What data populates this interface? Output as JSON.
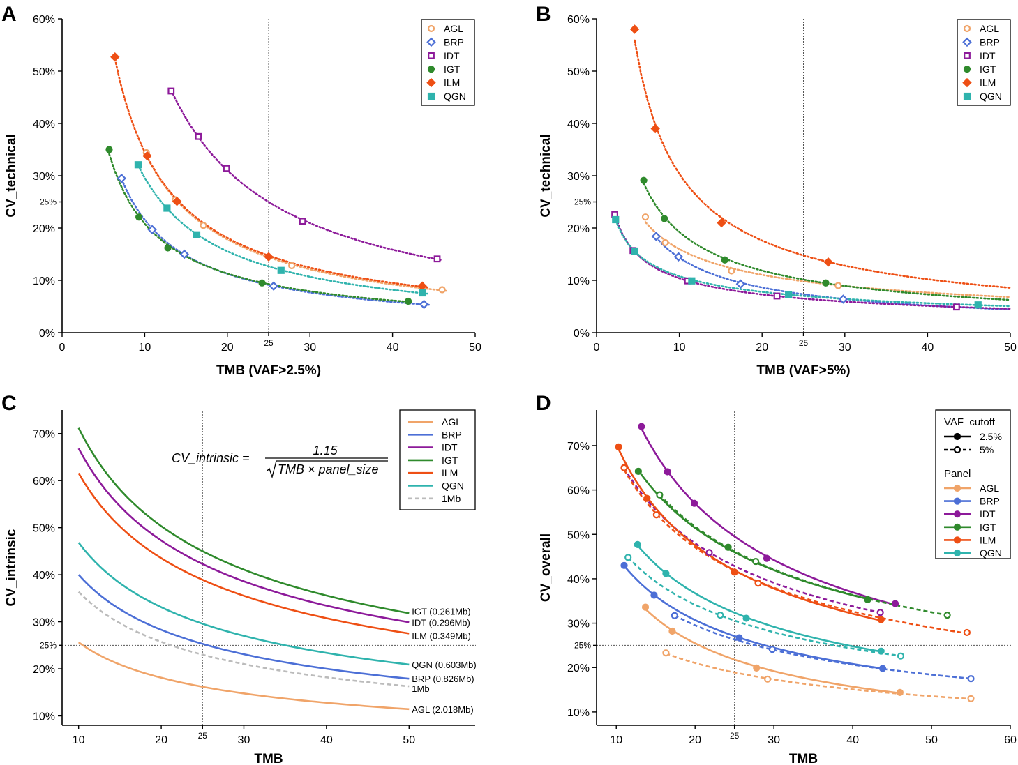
{
  "colors": {
    "AGL": "#f0a469",
    "BRP": "#4c6fd6",
    "IDT": "#8d1a9a",
    "IGT": "#2f8a2c",
    "ILM": "#ee4f14",
    "QGN": "#2fb3ad",
    "1Mb": "#bbbbbb"
  },
  "panel_letters": [
    "A",
    "B",
    "C",
    "D"
  ],
  "chart_data": [
    {
      "id": "A",
      "type": "scatter",
      "xlabel": "TMB (VAF>2.5%)",
      "ylabel": "CV_technical",
      "xlim": [
        0,
        50
      ],
      "ylim": [
        0,
        60
      ],
      "xticks": [
        0,
        10,
        20,
        30,
        40,
        50
      ],
      "xtick_labels": [
        "0",
        "10",
        "20",
        "30",
        "40",
        "50"
      ],
      "yticks": [
        0,
        10,
        20,
        30,
        40,
        50,
        60
      ],
      "ytick_labels": [
        "0%",
        "10%",
        "20%",
        "30%",
        "40%",
        "50%",
        "60%"
      ],
      "ref_x": 25,
      "ref_x_label": "25",
      "ref_y": 25,
      "ref_y_label": "25%",
      "legend_position": "top-right",
      "trend_lines": "dotted",
      "series": [
        {
          "name": "AGL",
          "marker": "open-circle",
          "x": [
            10.2,
            13.7,
            17.1,
            27.8,
            46
          ],
          "y": [
            34.4,
            25.4,
            20.5,
            12.8,
            8.2
          ]
        },
        {
          "name": "BRP",
          "marker": "open-diamond",
          "x": [
            7.2,
            10.9,
            14.8,
            25.6,
            43.8
          ],
          "y": [
            29.5,
            19.7,
            15,
            8.9,
            5.4
          ]
        },
        {
          "name": "IDT",
          "marker": "open-square",
          "x": [
            13.2,
            16.5,
            19.9,
            29.1,
            45.4
          ],
          "y": [
            46.2,
            37.5,
            31.4,
            21.3,
            14.1
          ]
        },
        {
          "name": "IGT",
          "marker": "filled-circle",
          "x": [
            5.7,
            9.3,
            12.8,
            24.2,
            41.9
          ],
          "y": [
            35,
            22.1,
            16.2,
            9.5,
            6
          ]
        },
        {
          "name": "ILM",
          "marker": "filled-diamond",
          "x": [
            6.4,
            10.3,
            13.9,
            25,
            43.6
          ],
          "y": [
            52.7,
            33.8,
            25.1,
            14.5,
            8.9
          ]
        },
        {
          "name": "QGN",
          "marker": "filled-square",
          "x": [
            9.2,
            12.7,
            16.3,
            26.5,
            43.6
          ],
          "y": [
            32.1,
            23.8,
            18.7,
            11.9,
            7.6
          ]
        }
      ]
    },
    {
      "id": "B",
      "type": "scatter",
      "xlabel": "TMB (VAF>5%)",
      "ylabel": "CV_technical",
      "xlim": [
        0,
        50
      ],
      "ylim": [
        0,
        60
      ],
      "xticks": [
        0,
        10,
        20,
        30,
        40,
        50
      ],
      "xtick_labels": [
        "0",
        "10",
        "20",
        "30",
        "40",
        "50"
      ],
      "yticks": [
        0,
        10,
        20,
        30,
        40,
        50,
        60
      ],
      "ytick_labels": [
        "0%",
        "10%",
        "20%",
        "30%",
        "40%",
        "50%",
        "60%"
      ],
      "ref_x": 25,
      "ref_x_label": "25",
      "ref_y": 25,
      "ref_y_label": "25%",
      "legend_position": "top-right",
      "trend_lines": "dotted",
      "series": [
        {
          "name": "AGL",
          "marker": "open-circle",
          "x": [
            5.9,
            8.3,
            16.3,
            29.2,
            50
          ],
          "y": [
            22.1,
            17.2,
            11.8,
            9,
            7
          ]
        },
        {
          "name": "BRP",
          "marker": "open-diamond",
          "x": [
            7.2,
            9.9,
            17.4,
            29.8,
            50
          ],
          "y": [
            18.4,
            14.5,
            9.3,
            6.4,
            4.5
          ]
        },
        {
          "name": "IDT",
          "marker": "open-square",
          "x": [
            2.2,
            4.4,
            11,
            21.8,
            43.5
          ],
          "y": [
            22.6,
            15.7,
            9.9,
            7,
            4.9
          ]
        },
        {
          "name": "IGT",
          "marker": "filled-circle",
          "x": [
            5.7,
            8.2,
            15.5,
            27.7,
            50
          ],
          "y": [
            29.1,
            21.8,
            13.9,
            9.5,
            6.3
          ]
        },
        {
          "name": "ILM",
          "marker": "filled-diamond",
          "x": [
            4.6,
            7.1,
            15.1,
            28,
            50
          ],
          "y": [
            58,
            39,
            21,
            13.5,
            8.8
          ]
        },
        {
          "name": "QGN",
          "marker": "filled-square",
          "x": [
            2.3,
            4.6,
            11.5,
            23.2,
            46.1
          ],
          "y": [
            21.6,
            15.6,
            9.9,
            7.3,
            5.3
          ]
        }
      ]
    },
    {
      "id": "C",
      "type": "line",
      "xlabel": "TMB",
      "ylabel": "CV_intrinsic",
      "xlim": [
        8,
        58
      ],
      "ylim": [
        8,
        75
      ],
      "xticks": [
        10,
        20,
        30,
        40,
        50
      ],
      "xtick_labels": [
        "10",
        "20",
        "30",
        "40",
        "50"
      ],
      "yticks": [
        10,
        20,
        30,
        40,
        50,
        60,
        70
      ],
      "ytick_labels": [
        "10%",
        "20%",
        "30%",
        "40%",
        "50%",
        "60%",
        "70%"
      ],
      "ref_x": 25,
      "ref_x_label": "25",
      "ref_y": 25,
      "ref_y_label": "25%",
      "legend_position": "top-right",
      "formula": {
        "lhs": "CV_intrinsic =",
        "numerator": "1.15",
        "denominator": "TMB × panel_size"
      },
      "x": [
        10,
        20,
        25,
        30,
        40,
        50
      ],
      "series": [
        {
          "name": "AGL",
          "end_label": "AGL (2.018Mb)",
          "style": "solid",
          "values": [
            25.6,
            18.1,
            16.2,
            14.8,
            12.8,
            11.4
          ]
        },
        {
          "name": "BRP",
          "end_label": "BRP (0.826Mb)",
          "style": "solid",
          "values": [
            40,
            28.3,
            25.3,
            23.1,
            20,
            17.9
          ]
        },
        {
          "name": "IDT",
          "end_label": "IDT (0.296Mb)",
          "style": "solid",
          "values": [
            66.8,
            47.3,
            42.3,
            38.6,
            33.4,
            29.9
          ]
        },
        {
          "name": "IGT",
          "end_label": "IGT (0.261Mb)",
          "style": "solid",
          "values": [
            71.2,
            50.3,
            45,
            41.1,
            35.6,
            31.8
          ]
        },
        {
          "name": "ILM",
          "end_label": "ILM (0.349Mb)",
          "style": "solid",
          "values": [
            61.6,
            43.5,
            38.9,
            35.5,
            30.8,
            27.5
          ]
        },
        {
          "name": "QGN",
          "end_label": "QGN (0.603Mb)",
          "style": "solid",
          "values": [
            46.8,
            33.1,
            29.6,
            27,
            23.4,
            20.9
          ]
        },
        {
          "name": "1Mb",
          "end_label": "1Mb",
          "style": "dashed",
          "values": [
            36.4,
            25.7,
            23,
            21,
            18.2,
            16.3
          ]
        }
      ]
    },
    {
      "id": "D",
      "type": "line",
      "xlabel": "TMB",
      "ylabel": "CV_overall",
      "xlim": [
        7.5,
        60
      ],
      "ylim": [
        7,
        78
      ],
      "xticks": [
        10,
        20,
        30,
        40,
        50,
        60
      ],
      "xtick_labels": [
        "10",
        "20",
        "30",
        "40",
        "50",
        "60"
      ],
      "yticks": [
        10,
        20,
        30,
        40,
        50,
        60,
        70
      ],
      "ytick_labels": [
        "10%",
        "20%",
        "30%",
        "40%",
        "50%",
        "60%",
        "70%"
      ],
      "ref_x": 25,
      "ref_x_label": "25",
      "ref_y": 25,
      "ref_y_label": "25%",
      "legend_position": "top-right",
      "legend_title_vaf": "VAF_cutoff",
      "vaf_items": [
        {
          "label": "2.5%",
          "style": "solid"
        },
        {
          "label": "5%",
          "style": "dashed"
        }
      ],
      "legend_title_panel": "Panel",
      "series": [
        {
          "name": "AGL",
          "vaf": "2.5%",
          "x": [
            13.7,
            17.1,
            27.8,
            46
          ],
          "y": [
            33.6,
            28.2,
            19.9,
            14.4
          ]
        },
        {
          "name": "AGL",
          "vaf": "5%",
          "x": [
            16.3,
            29.2,
            55
          ],
          "y": [
            23.3,
            17.4,
            13
          ]
        },
        {
          "name": "BRP",
          "vaf": "2.5%",
          "x": [
            11,
            14.8,
            25.6,
            43.8
          ],
          "y": [
            43,
            36.3,
            26.7,
            19.8
          ]
        },
        {
          "name": "BRP",
          "vaf": "5%",
          "x": [
            17.4,
            29.8,
            55
          ],
          "y": [
            31.7,
            24.1,
            17.5
          ]
        },
        {
          "name": "IDT",
          "vaf": "2.5%",
          "x": [
            13.2,
            16.5,
            19.9,
            29.1,
            45.4
          ],
          "y": [
            74.3,
            64.1,
            57,
            44.6,
            34.4
          ]
        },
        {
          "name": "IDT",
          "vaf": "5%",
          "x": [
            11,
            21.8,
            43.5
          ],
          "y": [
            65,
            45.9,
            32.4
          ]
        },
        {
          "name": "IGT",
          "vaf": "2.5%",
          "x": [
            12.8,
            24.2,
            41.9
          ],
          "y": [
            64.2,
            47.1,
            35.3
          ]
        },
        {
          "name": "IGT",
          "vaf": "5%",
          "x": [
            15.5,
            27.7,
            52
          ],
          "y": [
            58.9,
            43.9,
            31.8
          ]
        },
        {
          "name": "ILM",
          "vaf": "2.5%",
          "x": [
            10.3,
            13.9,
            25,
            43.6
          ],
          "y": [
            69.7,
            58.1,
            41.5,
            30.8
          ]
        },
        {
          "name": "ILM",
          "vaf": "5%",
          "x": [
            11,
            15.1,
            28,
            54.5
          ],
          "y": [
            65,
            54.4,
            39,
            27.9
          ]
        },
        {
          "name": "QGN",
          "vaf": "2.5%",
          "x": [
            12.7,
            16.3,
            26.5,
            43.6
          ],
          "y": [
            47.7,
            41.2,
            31.1,
            23.7
          ]
        },
        {
          "name": "QGN",
          "vaf": "5%",
          "x": [
            11.5,
            23.2,
            46.1
          ],
          "y": [
            44.8,
            31.8,
            22.6
          ]
        }
      ]
    }
  ]
}
